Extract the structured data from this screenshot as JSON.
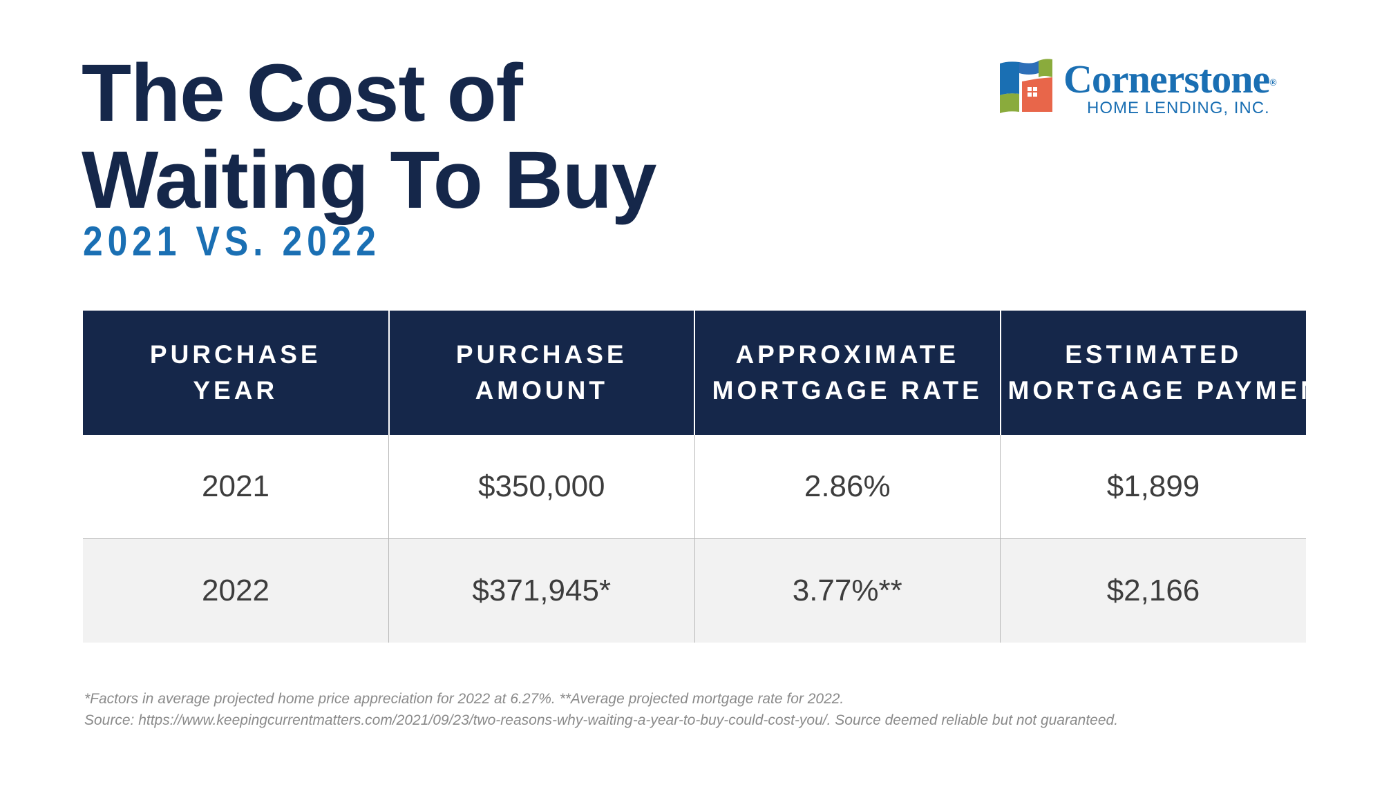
{
  "title": {
    "line1": "The Cost of",
    "line2": "Waiting To Buy"
  },
  "subtitle": "2021 VS. 2022",
  "logo": {
    "name": "Cornerstone",
    "registered": "®",
    "tagline": "HOME LENDING, INC.",
    "colors": {
      "blue": "#1a6fb3",
      "green": "#8aab3c",
      "orange": "#e8664a"
    }
  },
  "colors": {
    "title": "#15274a",
    "subtitle": "#1a6fb3",
    "header_bg": "#15274a",
    "row_alt_bg": "#f2f2f2"
  },
  "chart_data": {
    "type": "table",
    "columns": [
      {
        "line1": "PURCHASE",
        "line2": "YEAR"
      },
      {
        "line1": "PURCHASE",
        "line2": "AMOUNT"
      },
      {
        "line1": "APPROXIMATE",
        "line2": "MORTGAGE RATE"
      },
      {
        "line1": "ESTIMATED",
        "line2": "MORTGAGE PAYMENT"
      }
    ],
    "rows": [
      [
        "2021",
        "$350,000",
        "2.86%",
        "$1,899"
      ],
      [
        "2022",
        "$371,945*",
        "3.77%**",
        "$2,166"
      ]
    ]
  },
  "footnotes": {
    "line1": "*Factors in average projected home price appreciation for 2022 at 6.27%. **Average projected mortgage rate for 2022.",
    "line2": "Source: https://www.keepingcurrentmatters.com/2021/09/23/two-reasons-why-waiting-a-year-to-buy-could-cost-you/. Source deemed reliable but not guaranteed."
  }
}
